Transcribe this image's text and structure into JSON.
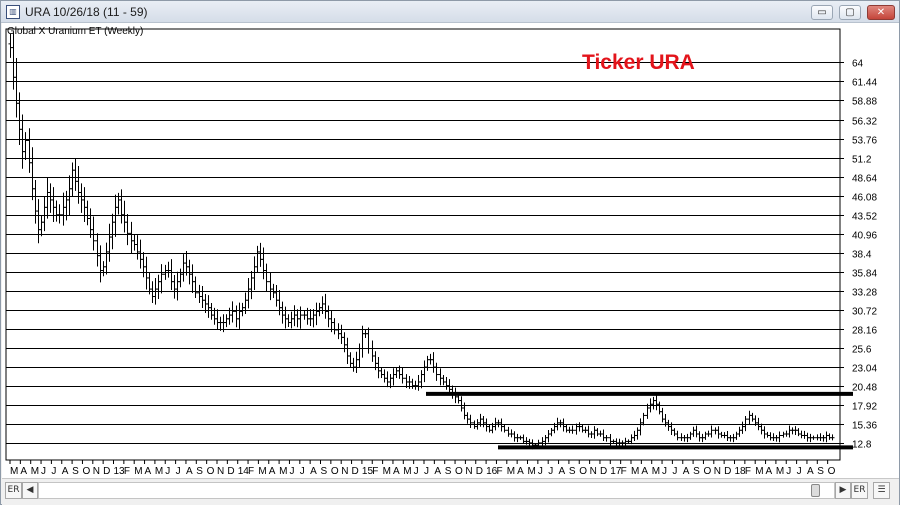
{
  "window": {
    "title": "URA 10/26/18 (11 - 59)",
    "app_icon": "chart-app-icon",
    "controls": {
      "minimize": "▭",
      "maximize": "▢",
      "close": "✕"
    }
  },
  "scrollbar": {
    "left_label": "ER",
    "left_arrow": "◀",
    "right_arrow": "▶",
    "right_label": "ER",
    "menu_icon": "☰",
    "thumb_position": 0.985
  },
  "annotations": {
    "ticker_label": "Ticker URA",
    "ticker_color": "#e3141b"
  },
  "chart_data": {
    "type": "ohlc",
    "title": "Global X Uranium ET (Weekly)",
    "xlabel": "",
    "ylabel": "",
    "ylim": [
      10.5,
      68.5
    ],
    "yticks": [
      12.8,
      15.36,
      17.92,
      20.48,
      23.04,
      25.6,
      28.16,
      30.72,
      33.28,
      35.84,
      38.4,
      40.96,
      43.52,
      46.08,
      48.64,
      51.2,
      53.76,
      56.32,
      58.88,
      61.44,
      64
    ],
    "grid": true,
    "bar_color": "#000000",
    "x_tick_labels": [
      "M",
      "A",
      "M",
      "J",
      "J",
      "A",
      "S",
      "O",
      "N",
      "D",
      "13",
      "F",
      "M",
      "A",
      "M",
      "J",
      "J",
      "A",
      "S",
      "O",
      "N",
      "D",
      "14",
      "F",
      "M",
      "A",
      "M",
      "J",
      "J",
      "A",
      "S",
      "O",
      "N",
      "D",
      "15",
      "F",
      "M",
      "A",
      "M",
      "J",
      "J",
      "A",
      "S",
      "O",
      "N",
      "D",
      "16",
      "F",
      "M",
      "A",
      "M",
      "J",
      "J",
      "A",
      "S",
      "O",
      "N",
      "D",
      "17",
      "F",
      "M",
      "A",
      "M",
      "J",
      "J",
      "A",
      "S",
      "O",
      "N",
      "D",
      "18",
      "F",
      "M",
      "A",
      "M",
      "J",
      "J",
      "A",
      "S",
      "O"
    ],
    "weekly_close": [
      66.0,
      62.0,
      58.5,
      55.0,
      52.0,
      53.5,
      50.5,
      47.0,
      44.0,
      41.5,
      42.5,
      44.5,
      46.5,
      45.5,
      44.5,
      43.5,
      43.5,
      44.5,
      45.5,
      47.0,
      49.5,
      48.0,
      46.5,
      45.5,
      44.5,
      43.0,
      41.5,
      40.0,
      38.0,
      36.0,
      36.5,
      38.5,
      40.5,
      42.5,
      44.5,
      45.5,
      43.5,
      42.5,
      41.0,
      40.0,
      39.5,
      38.5,
      37.5,
      36.5,
      35.0,
      33.5,
      32.5,
      33.5,
      34.5,
      35.5,
      36.0,
      36.0,
      34.5,
      33.5,
      34.5,
      35.5,
      37.0,
      36.5,
      35.5,
      34.5,
      33.0,
      32.5,
      32.0,
      31.5,
      31.0,
      30.0,
      29.5,
      29.0,
      29.0,
      29.0,
      29.5,
      30.0,
      30.5,
      29.5,
      30.5,
      31.0,
      32.0,
      33.5,
      35.0,
      36.5,
      38.5,
      37.5,
      36.0,
      34.5,
      33.5,
      33.0,
      32.0,
      31.0,
      30.0,
      29.5,
      29.0,
      29.5,
      30.0,
      29.5,
      30.0,
      30.0,
      29.5,
      29.5,
      30.0,
      30.5,
      31.0,
      31.5,
      30.5,
      29.5,
      29.0,
      28.0,
      27.5,
      27.0,
      26.0,
      24.5,
      23.5,
      23.0,
      24.0,
      25.5,
      27.5,
      27.5,
      25.5,
      24.5,
      23.5,
      22.5,
      22.0,
      21.5,
      21.0,
      21.5,
      22.0,
      22.5,
      22.0,
      21.5,
      21.0,
      21.0,
      20.5,
      20.5,
      21.0,
      22.0,
      23.0,
      24.0,
      24.0,
      23.0,
      22.0,
      21.5,
      21.0,
      20.5,
      20.0,
      19.5,
      19.0,
      18.5,
      17.5,
      16.5,
      16.0,
      15.5,
      15.0,
      15.5,
      16.0,
      15.5,
      15.0,
      14.5,
      15.0,
      15.5,
      15.5,
      15.0,
      14.5,
      14.0,
      14.0,
      13.5,
      13.5,
      13.5,
      13.0,
      13.0,
      12.8,
      12.5,
      12.5,
      12.8,
      13.0,
      13.5,
      14.0,
      14.5,
      15.0,
      15.5,
      15.5,
      15.0,
      14.5,
      14.5,
      14.5,
      15.0,
      15.0,
      14.5,
      14.5,
      14.0,
      14.0,
      14.5,
      14.0,
      14.0,
      13.5,
      13.5,
      13.0,
      13.0,
      12.8,
      12.8,
      12.8,
      13.0,
      13.0,
      13.5,
      13.8,
      14.5,
      15.5,
      16.5,
      17.5,
      18.0,
      18.5,
      18.0,
      17.0,
      16.0,
      15.5,
      15.0,
      14.5,
      14.0,
      13.5,
      13.5,
      13.5,
      13.5,
      14.0,
      14.5,
      14.0,
      13.5,
      13.5,
      14.0,
      14.0,
      14.5,
      14.5,
      14.0,
      13.8,
      13.8,
      13.5,
      13.5,
      13.5,
      14.0,
      14.5,
      15.0,
      16.0,
      16.5,
      16.0,
      15.5,
      15.0,
      14.5,
      14.0,
      13.8,
      13.5,
      13.5,
      13.5,
      13.8,
      14.0,
      14.0,
      14.5,
      14.5,
      14.5,
      14.0,
      13.8,
      13.8,
      13.5,
      13.5,
      13.5,
      13.5,
      13.5,
      13.5,
      13.8,
      13.5,
      13.5
    ],
    "resistance_line": {
      "value": 19.4,
      "from_date": "2015-07",
      "to_date": "2018-10"
    },
    "support_line": {
      "value": 12.2,
      "from_date": "2015-12",
      "to_date": "2018-10"
    }
  }
}
